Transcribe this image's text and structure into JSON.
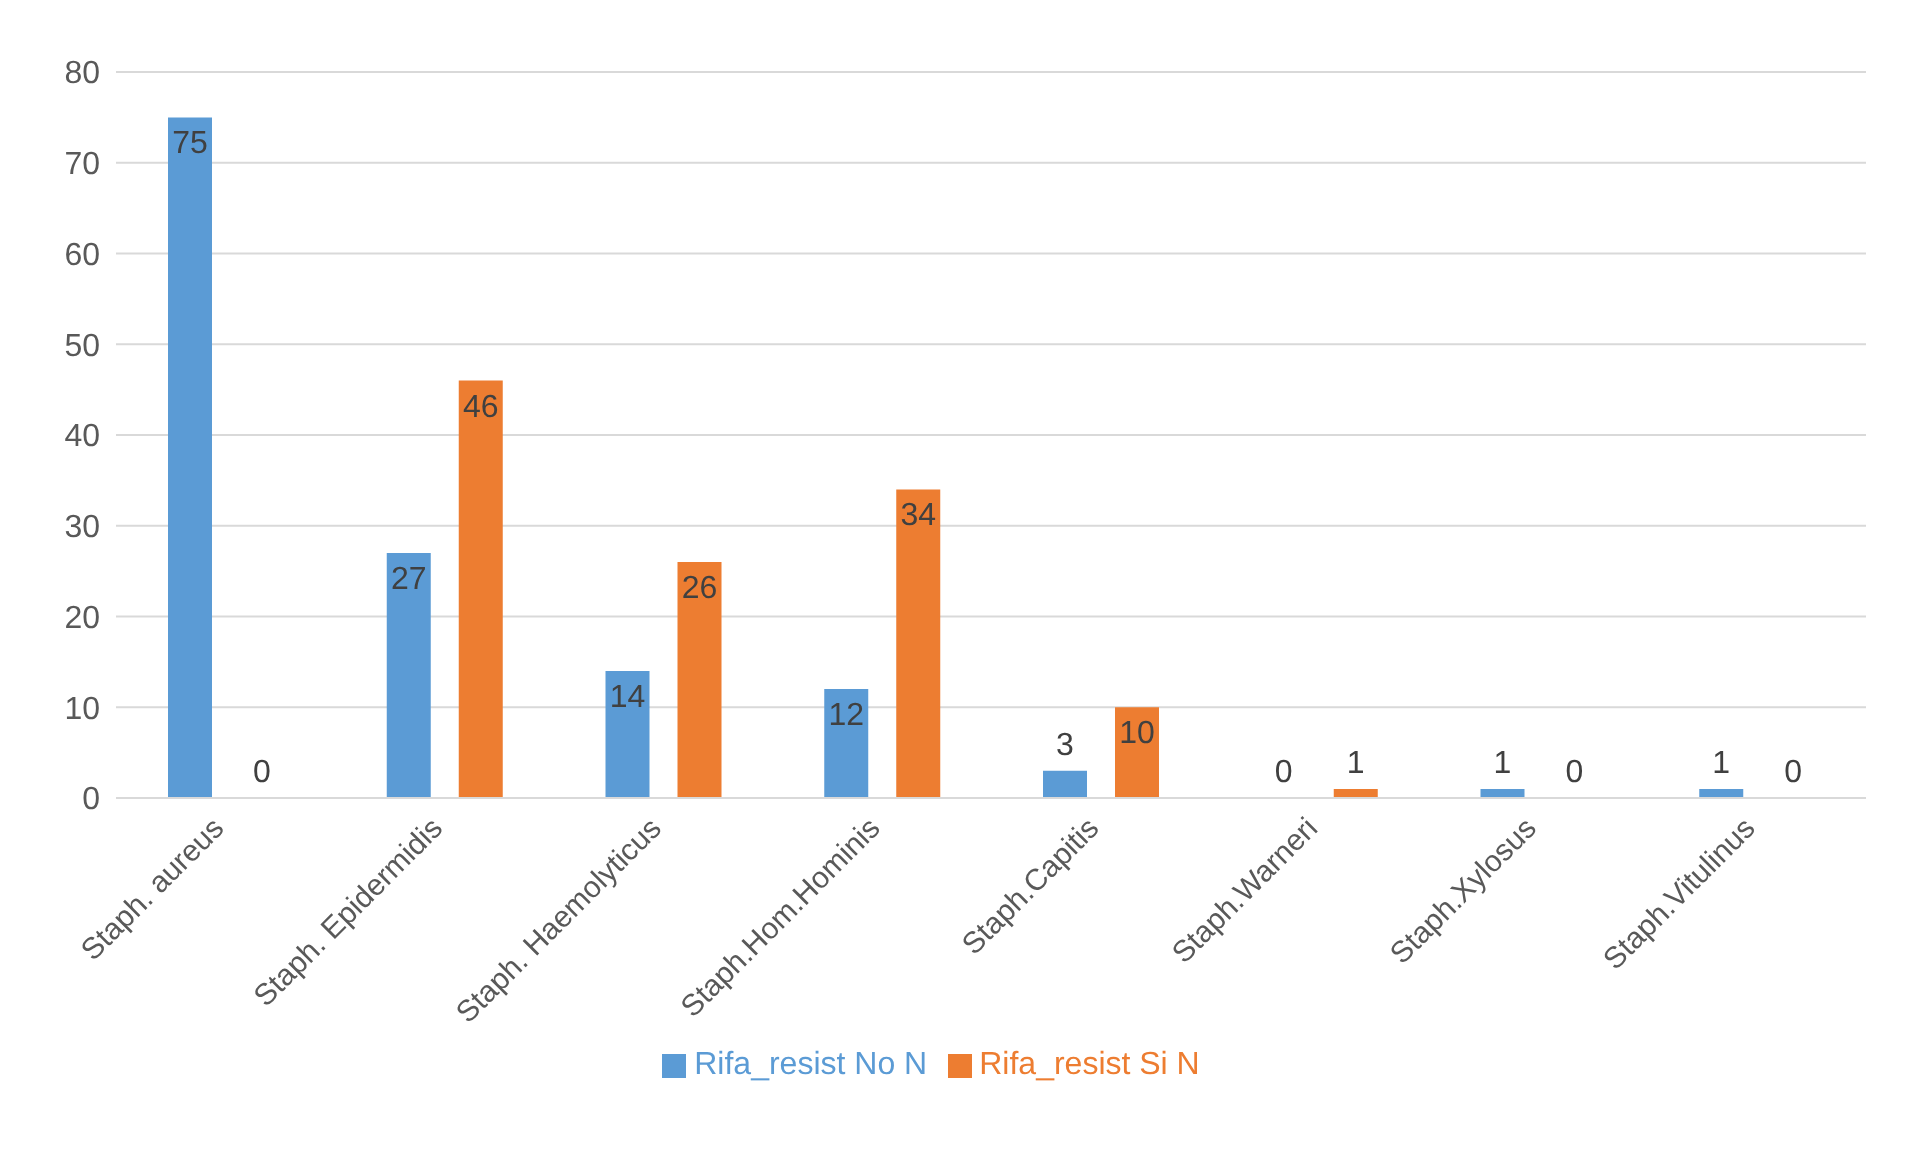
{
  "chart_data": {
    "type": "bar",
    "categories": [
      "Staph. aureus",
      "Staph. Epidermidis",
      "Staph. Haemolyticus",
      "Staph.Hom.Hominis",
      "Staph.Capitis",
      "Staph.Warneri",
      "Staph.Xylosus",
      "Staph.Vitulinus"
    ],
    "series": [
      {
        "name": "Rifa_resist No N",
        "color": "#5b9bd5",
        "values": [
          75,
          27,
          14,
          12,
          3,
          0,
          1,
          1
        ]
      },
      {
        "name": "Rifa_resist Si N",
        "color": "#ed7d31",
        "values": [
          0,
          46,
          26,
          34,
          10,
          1,
          0,
          0
        ]
      }
    ],
    "ylim": [
      0,
      80
    ],
    "yticks": [
      0,
      10,
      20,
      30,
      40,
      50,
      60,
      70,
      80
    ],
    "grid": "y",
    "legend": "bottom",
    "data_labels": true
  }
}
